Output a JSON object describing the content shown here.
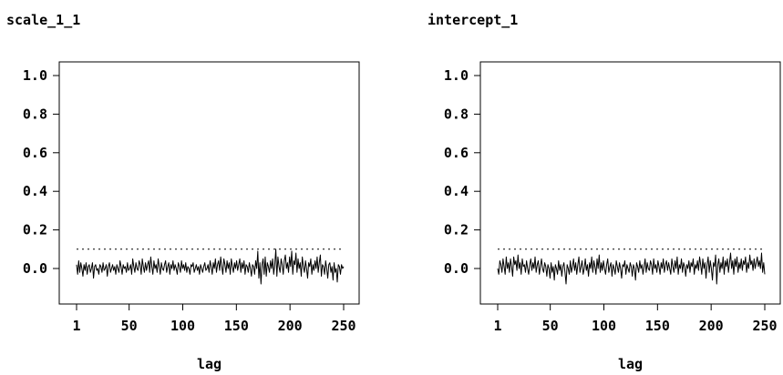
{
  "chart_data": [
    {
      "type": "line",
      "title": "scale_1_1",
      "xlabel": "lag",
      "ylabel": "",
      "xlim": [
        1,
        250
      ],
      "ylim": [
        -0.1,
        1.05
      ],
      "xticks": [
        "1",
        "50",
        "100",
        "150",
        "200",
        "250"
      ],
      "xtick_values": [
        1,
        50,
        100,
        150,
        200,
        250
      ],
      "yticks": [
        "1.0",
        "0.8",
        "0.6",
        "0.4",
        "0.2",
        "0.0"
      ],
      "ytick_values": [
        1.0,
        0.8,
        0.6,
        0.4,
        0.2,
        0.0
      ],
      "threshold": 0.1,
      "grid": false,
      "series": [
        {
          "values": [
            0.02,
            -0.03,
            0.04,
            -0.02,
            0.03,
            0.0,
            -0.04,
            0.02,
            -0.01,
            0.03,
            -0.03,
            0.01,
            0.02,
            -0.02,
            0.0,
            0.03,
            -0.05,
            0.01,
            0.02,
            -0.01,
            0.0,
            -0.03,
            0.02,
            0.01,
            -0.02,
            0.03,
            -0.01,
            0.0,
            0.02,
            -0.04,
            0.01,
            0.03,
            -0.02,
            0.0,
            0.02,
            -0.01,
            0.01,
            -0.03,
            0.02,
            0.0,
            -0.02,
            0.04,
            0.01,
            -0.03,
            0.02,
            0.0,
            0.01,
            -0.02,
            0.03,
            -0.01,
            0.0,
            0.02,
            -0.03,
            0.05,
            0.01,
            -0.02,
            0.03,
            0.0,
            -0.01,
            0.04,
            0.02,
            -0.03,
            0.05,
            0.01,
            -0.02,
            0.03,
            -0.01,
            0.02,
            0.04,
            -0.02,
            0.06,
            0.01,
            -0.03,
            0.04,
            0.0,
            0.02,
            -0.02,
            0.05,
            0.01,
            -0.03,
            0.03,
            0.0,
            -0.01,
            0.02,
            0.04,
            -0.02,
            0.01,
            0.03,
            -0.03,
            0.02,
            0.0,
            0.04,
            -0.01,
            0.02,
            0.0,
            -0.03,
            0.03,
            0.01,
            -0.02,
            0.04,
            0.0,
            0.02,
            -0.01,
            0.03,
            -0.02,
            0.01,
            0.0,
            -0.03,
            0.02,
            0.01,
            0.03,
            -0.02,
            0.0,
            0.02,
            -0.01,
            0.01,
            -0.03,
            0.02,
            0.0,
            -0.02,
            0.01,
            0.03,
            -0.01,
            0.0,
            0.02,
            -0.02,
            0.04,
            0.01,
            -0.03,
            0.03,
            0.0,
            0.05,
            -0.02,
            0.02,
            0.04,
            -0.01,
            0.06,
            0.01,
            -0.03,
            0.05,
            0.02,
            -0.02,
            0.04,
            0.0,
            0.03,
            -0.03,
            0.05,
            0.01,
            -0.02,
            0.03,
            0.0,
            0.04,
            -0.01,
            0.02,
            0.05,
            -0.02,
            0.03,
            0.0,
            0.04,
            -0.03,
            0.02,
            0.01,
            -0.02,
            0.03,
            0.0,
            -0.04,
            0.02,
            0.01,
            -0.03,
            0.04,
            0.0,
            0.09,
            -0.05,
            0.03,
            -0.08,
            0.02,
            0.05,
            -0.03,
            0.06,
            -0.04,
            0.03,
            0.01,
            -0.02,
            0.04,
            0.0,
            0.05,
            -0.03,
            0.02,
            0.1,
            -0.04,
            0.06,
            0.01,
            -0.02,
            0.05,
            0.02,
            -0.03,
            0.04,
            0.07,
            0.0,
            0.03,
            -0.02,
            0.06,
            0.01,
            0.09,
            -0.03,
            0.04,
            0.02,
            0.08,
            -0.02,
            0.05,
            0.0,
            0.03,
            -0.04,
            0.06,
            0.01,
            -0.02,
            0.04,
            0.0,
            -0.05,
            0.03,
            0.01,
            0.05,
            -0.03,
            0.02,
            -0.01,
            0.04,
            0.0,
            0.06,
            -0.02,
            0.03,
            0.07,
            -0.04,
            0.02,
            0.01,
            -0.03,
            0.04,
            0.0,
            -0.05,
            0.02,
            0.03,
            -0.02,
            0.01,
            -0.06,
            0.03,
            -0.02,
            0.0,
            -0.07,
            0.02,
            0.01,
            -0.03,
            0.02,
            0.0,
            0.01
          ]
        }
      ]
    },
    {
      "type": "line",
      "title": "intercept_1",
      "xlabel": "lag",
      "ylabel": "",
      "xlim": [
        1,
        250
      ],
      "ylim": [
        -0.1,
        1.05
      ],
      "xticks": [
        "1",
        "50",
        "100",
        "150",
        "200",
        "250"
      ],
      "xtick_values": [
        1,
        50,
        100,
        150,
        200,
        250
      ],
      "yticks": [
        "1.0",
        "0.8",
        "0.6",
        "0.4",
        "0.2",
        "0.0"
      ],
      "ytick_values": [
        1.0,
        0.8,
        0.6,
        0.4,
        0.2,
        0.0
      ],
      "threshold": 0.1,
      "grid": false,
      "series": [
        {
          "values": [
            0.0,
            -0.03,
            0.04,
            0.02,
            -0.02,
            0.05,
            0.01,
            -0.03,
            0.06,
            0.0,
            0.03,
            -0.02,
            0.05,
            0.01,
            -0.04,
            0.06,
            0.02,
            0.04,
            -0.01,
            0.07,
            0.0,
            0.03,
            -0.03,
            0.05,
            0.01,
            0.02,
            -0.02,
            0.04,
            0.0,
            -0.03,
            0.02,
            0.05,
            -0.01,
            0.03,
            0.0,
            0.06,
            -0.02,
            0.02,
            0.04,
            -0.03,
            0.01,
            0.05,
            0.0,
            -0.02,
            0.03,
            0.01,
            -0.04,
            0.02,
            0.0,
            -0.05,
            0.03,
            -0.02,
            0.01,
            -0.06,
            0.02,
            0.0,
            -0.03,
            0.04,
            -0.01,
            0.02,
            -0.04,
            0.01,
            0.03,
            -0.02,
            -0.08,
            0.02,
            0.0,
            -0.03,
            0.04,
            -0.02,
            0.01,
            0.05,
            -0.01,
            0.03,
            -0.03,
            0.02,
            0.06,
            -0.02,
            0.01,
            0.04,
            -0.03,
            0.0,
            0.05,
            -0.01,
            0.02,
            -0.04,
            0.03,
            0.0,
            0.06,
            -0.02,
            0.04,
            0.01,
            -0.03,
            0.05,
            0.0,
            0.07,
            -0.02,
            0.03,
            -0.01,
            0.04,
            0.0,
            -0.03,
            0.02,
            0.05,
            -0.02,
            0.01,
            0.03,
            -0.04,
            0.02,
            0.0,
            -0.03,
            0.04,
            0.01,
            -0.02,
            0.03,
            0.0,
            -0.05,
            0.02,
            0.01,
            0.04,
            -0.03,
            0.02,
            0.0,
            -0.02,
            0.03,
            0.01,
            -0.04,
            0.02,
            0.0,
            -0.06,
            0.03,
            0.01,
            -0.02,
            0.04,
            0.0,
            0.02,
            -0.03,
            0.01,
            0.05,
            -0.02,
            0.03,
            0.0,
            -0.01,
            0.04,
            0.02,
            -0.03,
            0.05,
            0.0,
            0.02,
            -0.02,
            0.04,
            0.01,
            -0.03,
            0.03,
            0.0,
            0.05,
            -0.02,
            0.02,
            0.04,
            -0.01,
            0.03,
            0.0,
            -0.03,
            0.05,
            0.01,
            -0.02,
            0.04,
            0.0,
            0.06,
            -0.03,
            0.02,
            0.0,
            0.05,
            -0.02,
            0.03,
            0.01,
            -0.04,
            0.02,
            0.0,
            0.04,
            -0.02,
            0.03,
            0.01,
            0.05,
            -0.03,
            0.02,
            0.0,
            0.04,
            -0.01,
            0.06,
            0.02,
            -0.03,
            0.05,
            0.0,
            0.03,
            -0.05,
            0.02,
            0.06,
            -0.02,
            0.04,
            0.0,
            -0.06,
            0.03,
            0.01,
            0.07,
            -0.08,
            0.02,
            0.05,
            -0.02,
            0.03,
            0.0,
            0.06,
            -0.03,
            0.04,
            0.01,
            0.05,
            -0.02,
            0.03,
            0.08,
            0.0,
            0.04,
            -0.03,
            0.05,
            0.01,
            0.06,
            -0.02,
            0.03,
            0.0,
            0.05,
            -0.01,
            0.04,
            0.02,
            0.06,
            -0.02,
            0.03,
            0.0,
            0.07,
            0.02,
            0.04,
            -0.01,
            0.05,
            0.0,
            0.03,
            0.06,
            0.01,
            0.04,
            0.0,
            0.08,
            -0.02,
            0.03,
            -0.03
          ]
        }
      ]
    }
  ]
}
